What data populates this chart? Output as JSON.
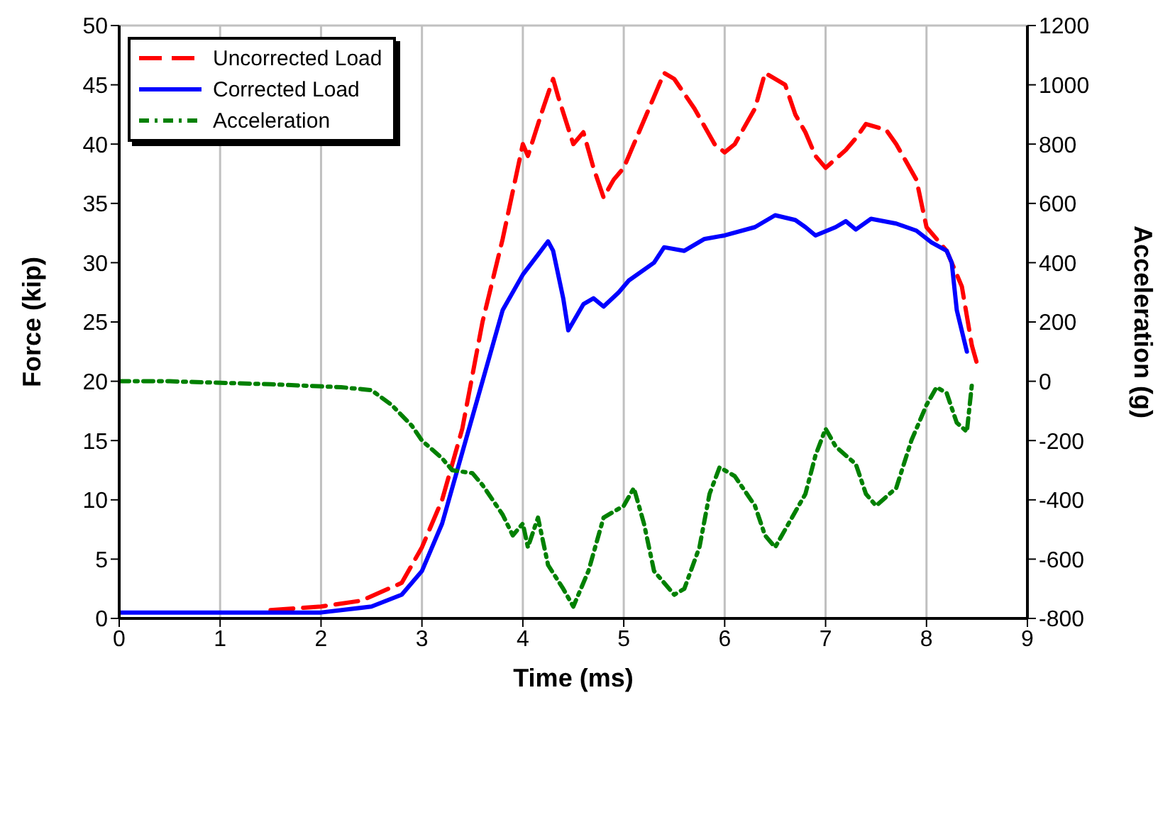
{
  "chart_data": {
    "type": "line",
    "xlabel": "Time (ms)",
    "ylabel": "Force (kip)",
    "y2label": "Acceleration (g)",
    "xlim": [
      0,
      9
    ],
    "xticks": [
      0,
      1,
      2,
      3,
      4,
      5,
      6,
      7,
      8,
      9
    ],
    "ylim": [
      0,
      50
    ],
    "yticks": [
      0,
      5,
      10,
      15,
      20,
      25,
      30,
      35,
      40,
      45,
      50
    ],
    "y2lim": [
      -800,
      1200
    ],
    "y2ticks": [
      -800,
      -600,
      -400,
      -200,
      0,
      200,
      400,
      600,
      800,
      1000,
      1200
    ],
    "grid": true,
    "legend": "top left",
    "marker": "none",
    "series": [
      {
        "name": "Uncorrected Load",
        "color": "#ff0000",
        "line_style": "dashed",
        "x": [
          1.5,
          2.0,
          2.4,
          2.8,
          3.0,
          3.2,
          3.4,
          3.6,
          3.8,
          4.0,
          4.05,
          4.2,
          4.3,
          4.35,
          4.5,
          4.6,
          4.7,
          4.8,
          4.9,
          5.0,
          5.1,
          5.3,
          5.4,
          5.5,
          5.7,
          5.9,
          6.0,
          6.1,
          6.3,
          6.4,
          6.6,
          6.7,
          6.8,
          6.9,
          7.0,
          7.2,
          7.3,
          7.4,
          7.6,
          7.7,
          7.9,
          8.0,
          8.2,
          8.35,
          8.45,
          8.5
        ],
        "values": [
          0.7,
          1,
          1.5,
          3,
          6,
          10,
          16,
          25,
          32,
          40,
          39,
          43,
          45.5,
          44,
          40,
          41,
          38,
          35.5,
          37,
          38,
          40,
          44,
          46,
          45.5,
          43,
          40,
          39.3,
          40,
          43,
          46,
          45,
          42.5,
          41,
          39,
          38,
          39.5,
          40.5,
          41.7,
          41.2,
          40,
          37,
          33,
          31,
          28,
          23,
          21.5
        ]
      },
      {
        "name": "Corrected Load",
        "color": "#0000ff",
        "line_style": "solid",
        "x": [
          0,
          2,
          2.5,
          2.8,
          3.0,
          3.2,
          3.4,
          3.6,
          3.8,
          4.0,
          4.25,
          4.3,
          4.4,
          4.45,
          4.6,
          4.7,
          4.8,
          4.95,
          5.05,
          5.3,
          5.4,
          5.6,
          5.8,
          6.0,
          6.3,
          6.5,
          6.7,
          6.8,
          6.9,
          7.1,
          7.2,
          7.3,
          7.45,
          7.7,
          7.9,
          8.05,
          8.2,
          8.25,
          8.3,
          8.4
        ],
        "values": [
          0.5,
          0.5,
          1,
          2,
          4,
          8,
          14,
          20,
          26,
          29,
          31.8,
          31,
          27,
          24.3,
          26.5,
          27,
          26.3,
          27.5,
          28.5,
          30,
          31.3,
          31,
          32,
          32.3,
          33,
          34,
          33.6,
          33,
          32.3,
          33,
          33.5,
          32.8,
          33.7,
          33.3,
          32.7,
          31.7,
          31,
          30,
          26,
          22.5
        ]
      },
      {
        "name": "Acceleration",
        "color": "#008000",
        "line_style": "dotted",
        "axis": "y2",
        "x": [
          0,
          0.5,
          1.5,
          2.2,
          2.5,
          2.7,
          2.9,
          3.0,
          3.2,
          3.3,
          3.5,
          3.6,
          3.8,
          3.9,
          4.0,
          4.05,
          4.15,
          4.25,
          4.4,
          4.5,
          4.65,
          4.8,
          5.0,
          5.1,
          5.2,
          5.3,
          5.5,
          5.6,
          5.75,
          5.85,
          5.95,
          6.1,
          6.3,
          6.4,
          6.5,
          6.6,
          6.8,
          6.9,
          7.0,
          7.1,
          7.3,
          7.4,
          7.5,
          7.7,
          7.85,
          8.0,
          8.1,
          8.2,
          8.3,
          8.4,
          8.45
        ],
        "values": [
          0,
          0,
          -10,
          -20,
          -30,
          -80,
          -150,
          -200,
          -260,
          -300,
          -310,
          -350,
          -450,
          -520,
          -480,
          -560,
          -460,
          -620,
          -700,
          -760,
          -640,
          -460,
          -420,
          -360,
          -480,
          -640,
          -720,
          -700,
          -560,
          -380,
          -290,
          -320,
          -420,
          -520,
          -560,
          -500,
          -380,
          -250,
          -160,
          -220,
          -280,
          -380,
          -420,
          -360,
          -200,
          -80,
          -20,
          -40,
          -140,
          -170,
          -10
        ]
      }
    ]
  }
}
